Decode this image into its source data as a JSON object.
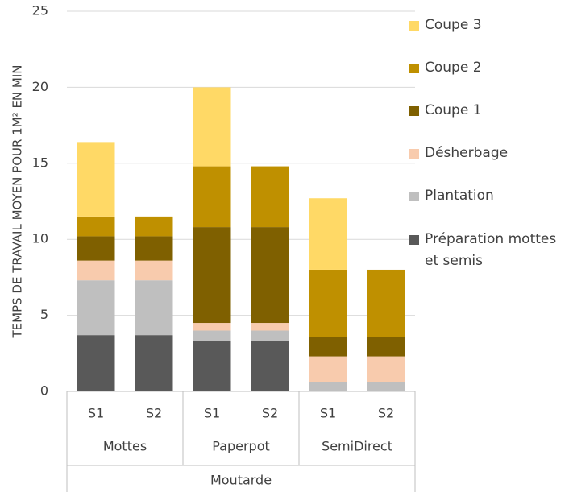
{
  "chart_data": {
    "type": "stacked_bar",
    "y_label": "TEMPS DE TRAVAIL MOYEN POUR 1M² EN MIN",
    "categories": [
      "S1",
      "S2",
      "S1",
      "S2",
      "S1",
      "S2"
    ],
    "category_groups": [
      "Mottes",
      "Paperpot",
      "SemiDirect"
    ],
    "super_group": "Moutarde",
    "series": [
      {
        "name": "Préparation mottes et semis",
        "color": "#595959",
        "values": [
          3.7,
          3.7,
          3.3,
          3.3,
          0,
          0
        ]
      },
      {
        "name": "Plantation",
        "color": "#bfbfbf",
        "values": [
          3.6,
          3.6,
          0.7,
          0.7,
          0.6,
          0.6
        ]
      },
      {
        "name": "Désherbage",
        "color": "#f8cbad",
        "values": [
          1.3,
          1.3,
          0.5,
          0.5,
          1.7,
          1.7
        ]
      },
      {
        "name": "Coupe 1",
        "color": "#7f6000",
        "values": [
          1.6,
          1.6,
          6.3,
          6.3,
          1.3,
          1.3
        ]
      },
      {
        "name": "Coupe 2",
        "color": "#bf9000",
        "values": [
          1.3,
          1.3,
          4.0,
          4.0,
          4.4,
          4.4
        ]
      },
      {
        "name": "Coupe 3",
        "color": "#ffd966",
        "values": [
          4.9,
          0,
          5.2,
          0,
          4.7,
          0
        ]
      }
    ],
    "ylim": [
      0,
      25
    ],
    "yticks": [
      0,
      5,
      10,
      15,
      20,
      25
    ],
    "grid": true,
    "legend": "right"
  }
}
